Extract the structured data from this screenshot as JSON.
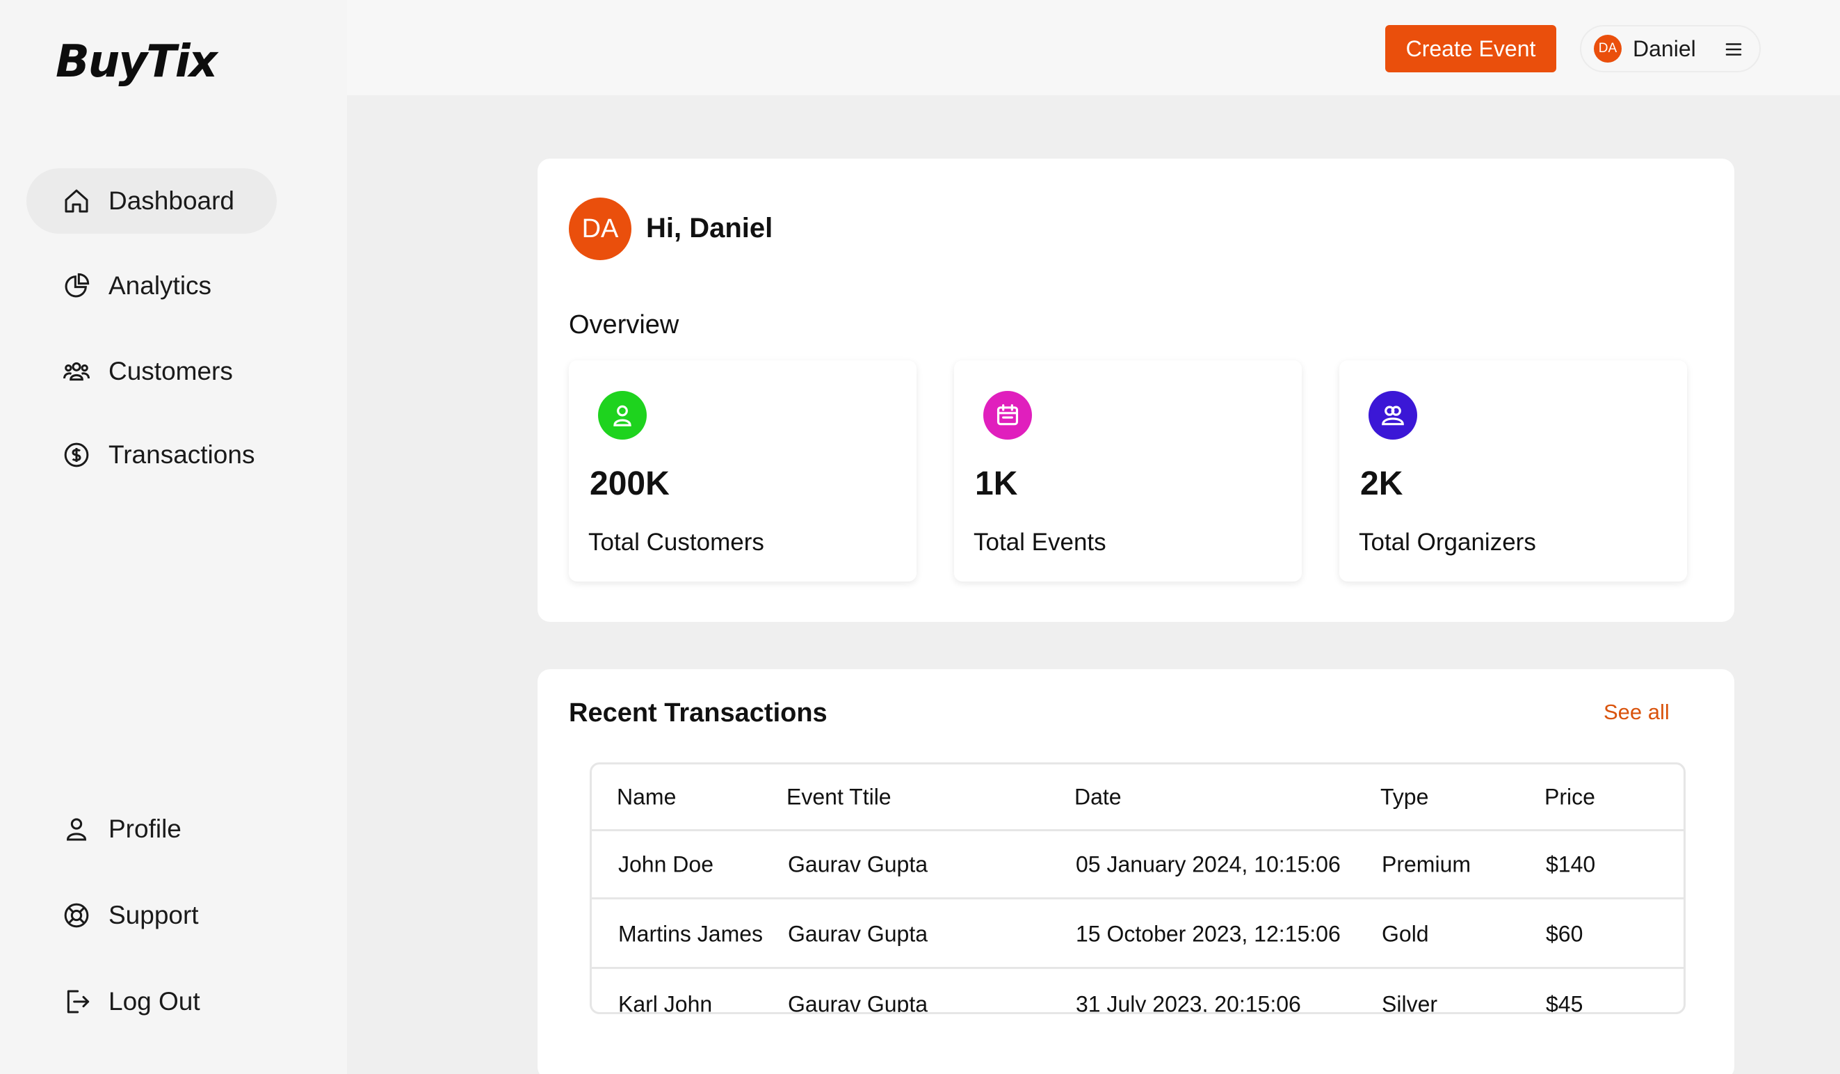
{
  "brand": {
    "logo_text": "BuyTix",
    "accent_color": "#ea4f0c"
  },
  "sidebar": {
    "items": [
      {
        "label": "Dashboard",
        "icon": "home-icon",
        "active": true
      },
      {
        "label": "Analytics",
        "icon": "pie-chart-icon"
      },
      {
        "label": "Customers",
        "icon": "users-icon"
      },
      {
        "label": "Transactions",
        "icon": "dollar-circle-icon"
      }
    ],
    "bottom_items": [
      {
        "label": "Profile",
        "icon": "user-icon"
      },
      {
        "label": "Support",
        "icon": "lifebuoy-icon"
      },
      {
        "label": "Log Out",
        "icon": "logout-icon"
      }
    ]
  },
  "topbar": {
    "create_label": "Create Event",
    "user_initials": "DA",
    "user_name": "Daniel",
    "menu_icon": "hamburger-icon"
  },
  "overview": {
    "avatar_initials": "DA",
    "greeting": "Hi, Daniel",
    "title": "Overview",
    "stats": [
      {
        "value": "200K",
        "label": "Total Customers",
        "icon": "person-icon",
        "color": "#1ed31e"
      },
      {
        "value": "1K",
        "label": "Total Events",
        "icon": "calendar-icon",
        "color": "#e01fbd"
      },
      {
        "value": "2K",
        "label": "Total Organizers",
        "icon": "group-icon",
        "color": "#3b17d6"
      }
    ]
  },
  "transactions": {
    "title": "Recent Transactions",
    "see_all": "See all",
    "columns": [
      "Name",
      "Event Ttile",
      "Date",
      "Type",
      "Price"
    ],
    "rows": [
      [
        "John Doe",
        "Gaurav Gupta",
        "05 January 2024, 10:15:06",
        "Premium",
        "$140"
      ],
      [
        "Martins James",
        "Gaurav Gupta",
        "15 October 2023, 12:15:06",
        "Gold",
        "$60"
      ],
      [
        "Karl John",
        "Gaurav Gupta",
        "31 July 2023, 20:15:06",
        "Silver",
        "$45"
      ]
    ]
  }
}
